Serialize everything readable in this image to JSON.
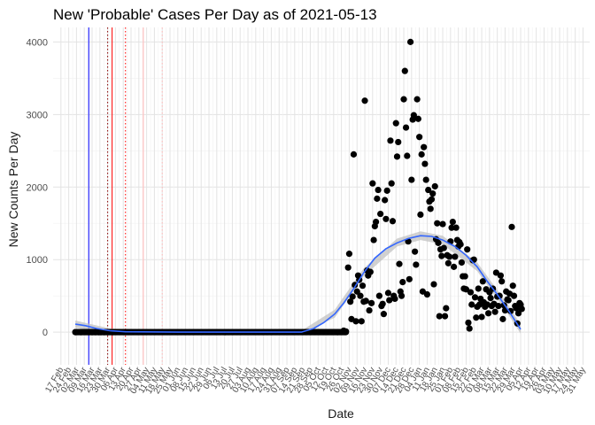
{
  "chart_data": {
    "type": "scatter",
    "title": "New 'Probable' Cases Per Day as of 2021-05-13",
    "xlabel": "Date",
    "ylabel": "New Counts Per Day",
    "ylim": [
      -450,
      4200
    ],
    "xlim": [
      "2020-02-10",
      "2021-06-06"
    ],
    "y_ticks": [
      0,
      1000,
      2000,
      3000,
      4000
    ],
    "x_ticks": [
      {
        "date": "2020-02-17",
        "label": "17 Feb"
      },
      {
        "date": "2020-02-24",
        "label": "24 Feb"
      },
      {
        "date": "2020-03-02",
        "label": "02 Mar"
      },
      {
        "date": "2020-03-09",
        "label": "09 Mar"
      },
      {
        "date": "2020-03-16",
        "label": "16 Mar"
      },
      {
        "date": "2020-03-23",
        "label": "23 Mar"
      },
      {
        "date": "2020-03-30",
        "label": "30 Mar"
      },
      {
        "date": "2020-04-06",
        "label": "06 Apr"
      },
      {
        "date": "2020-04-13",
        "label": "13 Apr"
      },
      {
        "date": "2020-04-20",
        "label": "20 Apr"
      },
      {
        "date": "2020-04-27",
        "label": "27 Apr"
      },
      {
        "date": "2020-05-04",
        "label": "04 May"
      },
      {
        "date": "2020-05-11",
        "label": "11 May"
      },
      {
        "date": "2020-05-18",
        "label": "18 May"
      },
      {
        "date": "2020-05-25",
        "label": "25 May"
      },
      {
        "date": "2020-06-01",
        "label": "01 Jun"
      },
      {
        "date": "2020-06-08",
        "label": "08 Jun"
      },
      {
        "date": "2020-06-15",
        "label": "15 Jun"
      },
      {
        "date": "2020-06-22",
        "label": "22 Jun"
      },
      {
        "date": "2020-06-29",
        "label": "29 Jun"
      },
      {
        "date": "2020-07-06",
        "label": "06 Jul"
      },
      {
        "date": "2020-07-13",
        "label": "13 Jul"
      },
      {
        "date": "2020-07-20",
        "label": "20 Jul"
      },
      {
        "date": "2020-07-27",
        "label": "27 Jul"
      },
      {
        "date": "2020-08-03",
        "label": "03 Aug"
      },
      {
        "date": "2020-08-10",
        "label": "10 Aug"
      },
      {
        "date": "2020-08-17",
        "label": "17 Aug"
      },
      {
        "date": "2020-08-24",
        "label": "24 Aug"
      },
      {
        "date": "2020-08-31",
        "label": "31 Aug"
      },
      {
        "date": "2020-09-07",
        "label": "07 Sep"
      },
      {
        "date": "2020-09-14",
        "label": "14 Sep"
      },
      {
        "date": "2020-09-21",
        "label": "21 Sep"
      },
      {
        "date": "2020-09-28",
        "label": "28 Sep"
      },
      {
        "date": "2020-10-05",
        "label": "05 Oct"
      },
      {
        "date": "2020-10-12",
        "label": "12 Oct"
      },
      {
        "date": "2020-10-19",
        "label": "19 Oct"
      },
      {
        "date": "2020-10-26",
        "label": "26 Oct"
      },
      {
        "date": "2020-11-02",
        "label": "02 Nov"
      },
      {
        "date": "2020-11-09",
        "label": "09 Nov"
      },
      {
        "date": "2020-11-16",
        "label": "16 Nov"
      },
      {
        "date": "2020-11-23",
        "label": "23 Nov"
      },
      {
        "date": "2020-11-30",
        "label": "30 Nov"
      },
      {
        "date": "2020-12-07",
        "label": "07 Dec"
      },
      {
        "date": "2020-12-14",
        "label": "14 Dec"
      },
      {
        "date": "2020-12-21",
        "label": "21 Dec"
      },
      {
        "date": "2020-12-28",
        "label": "28 Dec"
      },
      {
        "date": "2021-01-04",
        "label": "04 Jan"
      },
      {
        "date": "2021-01-11",
        "label": "11 Jan"
      },
      {
        "date": "2021-01-18",
        "label": "18 Jan"
      },
      {
        "date": "2021-01-25",
        "label": "25 Jan"
      },
      {
        "date": "2021-02-01",
        "label": "01 Feb"
      },
      {
        "date": "2021-02-08",
        "label": "08 Feb"
      },
      {
        "date": "2021-02-15",
        "label": "15 Feb"
      },
      {
        "date": "2021-02-22",
        "label": "22 Feb"
      },
      {
        "date": "2021-03-01",
        "label": "01 Mar"
      },
      {
        "date": "2021-03-08",
        "label": "08 Mar"
      },
      {
        "date": "2021-03-15",
        "label": "15 Mar"
      },
      {
        "date": "2021-03-22",
        "label": "22 Mar"
      },
      {
        "date": "2021-03-29",
        "label": "29 Mar"
      },
      {
        "date": "2021-04-05",
        "label": "05 Apr"
      },
      {
        "date": "2021-04-12",
        "label": "12 Apr"
      },
      {
        "date": "2021-04-19",
        "label": "19 Apr"
      },
      {
        "date": "2021-04-26",
        "label": "26 Apr"
      },
      {
        "date": "2021-05-03",
        "label": "03 May"
      },
      {
        "date": "2021-05-10",
        "label": "10 May"
      },
      {
        "date": "2021-05-17",
        "label": "17 May"
      },
      {
        "date": "2021-05-24",
        "label": "24 May"
      },
      {
        "date": "2021-05-31",
        "label": "31 May"
      }
    ],
    "vertical_lines": [
      {
        "date": "2020-03-13",
        "color": "#0000ff",
        "style": "solid"
      },
      {
        "date": "2020-03-30",
        "color": "#8b0000",
        "style": "dotted"
      },
      {
        "date": "2020-04-03",
        "color": "#ff0000",
        "style": "solid"
      },
      {
        "date": "2020-04-15",
        "color": "#ff0000",
        "style": "dotted"
      },
      {
        "date": "2020-05-01",
        "color": "#ffb6b6",
        "style": "solid"
      },
      {
        "date": "2020-05-18",
        "color": "#ffb6b6",
        "style": "dotted"
      }
    ],
    "points": [
      [
        "2020-03-01",
        0
      ],
      [
        "2020-03-06",
        0
      ],
      [
        "2020-03-13",
        0
      ],
      [
        "2020-03-16",
        0
      ],
      [
        "2020-03-19",
        0
      ],
      [
        "2020-03-22",
        0
      ],
      [
        "2020-03-24",
        0
      ],
      [
        "2020-03-27",
        0
      ],
      [
        "2020-03-30",
        0
      ],
      [
        "2020-10-28",
        20
      ],
      [
        "2020-10-30",
        10
      ],
      [
        "2020-11-01",
        890
      ],
      [
        "2020-11-02",
        1080
      ],
      [
        "2020-11-03",
        420
      ],
      [
        "2020-11-04",
        180
      ],
      [
        "2020-11-05",
        490
      ],
      [
        "2020-11-06",
        2450
      ],
      [
        "2020-11-07",
        650
      ],
      [
        "2020-11-08",
        150
      ],
      [
        "2020-11-09",
        560
      ],
      [
        "2020-11-10",
        780
      ],
      [
        "2020-11-11",
        720
      ],
      [
        "2020-11-12",
        500
      ],
      [
        "2020-11-13",
        150
      ],
      [
        "2020-11-14",
        640
      ],
      [
        "2020-11-15",
        420
      ],
      [
        "2020-11-16",
        3190
      ],
      [
        "2020-11-17",
        430
      ],
      [
        "2020-11-18",
        850
      ],
      [
        "2020-11-19",
        780
      ],
      [
        "2020-11-20",
        300
      ],
      [
        "2020-11-21",
        830
      ],
      [
        "2020-11-22",
        400
      ],
      [
        "2020-11-23",
        2050
      ],
      [
        "2020-11-24",
        1270
      ],
      [
        "2020-11-25",
        1460
      ],
      [
        "2020-11-26",
        1520
      ],
      [
        "2020-11-27",
        1840
      ],
      [
        "2020-11-28",
        1960
      ],
      [
        "2020-11-29",
        500
      ],
      [
        "2020-11-30",
        1630
      ],
      [
        "2020-12-01",
        360
      ],
      [
        "2020-12-02",
        390
      ],
      [
        "2020-12-03",
        250
      ],
      [
        "2020-12-04",
        1820
      ],
      [
        "2020-12-05",
        1560
      ],
      [
        "2020-12-06",
        1950
      ],
      [
        "2020-12-07",
        540
      ],
      [
        "2020-12-08",
        440
      ],
      [
        "2020-12-09",
        2640
      ],
      [
        "2020-12-10",
        2050
      ],
      [
        "2020-12-11",
        1530
      ],
      [
        "2020-12-12",
        500
      ],
      [
        "2020-12-13",
        460
      ],
      [
        "2020-12-14",
        2880
      ],
      [
        "2020-12-15",
        2420
      ],
      [
        "2020-12-16",
        2620
      ],
      [
        "2020-12-17",
        940
      ],
      [
        "2020-12-18",
        560
      ],
      [
        "2020-12-19",
        500
      ],
      [
        "2020-12-20",
        690
      ],
      [
        "2020-12-21",
        3210
      ],
      [
        "2020-12-22",
        3600
      ],
      [
        "2020-12-23",
        2820
      ],
      [
        "2020-12-24",
        2430
      ],
      [
        "2020-12-25",
        1250
      ],
      [
        "2020-12-26",
        730
      ],
      [
        "2020-12-27",
        4000
      ],
      [
        "2020-12-28",
        2100
      ],
      [
        "2020-12-29",
        2930
      ],
      [
        "2020-12-30",
        2990
      ],
      [
        "2020-12-31",
        1110
      ],
      [
        "2021-01-01",
        930
      ],
      [
        "2021-01-02",
        3210
      ],
      [
        "2021-01-03",
        2940
      ],
      [
        "2021-01-04",
        2690
      ],
      [
        "2021-01-05",
        1620
      ],
      [
        "2021-01-06",
        2450
      ],
      [
        "2021-01-07",
        560
      ],
      [
        "2021-01-08",
        2550
      ],
      [
        "2021-01-09",
        2320
      ],
      [
        "2021-01-10",
        2100
      ],
      [
        "2021-01-11",
        520
      ],
      [
        "2021-01-12",
        1960
      ],
      [
        "2021-01-13",
        1800
      ],
      [
        "2021-01-14",
        1700
      ],
      [
        "2021-01-15",
        1830
      ],
      [
        "2021-01-16",
        1910
      ],
      [
        "2021-01-17",
        660
      ],
      [
        "2021-01-18",
        2010
      ],
      [
        "2021-01-19",
        1280
      ],
      [
        "2021-01-20",
        1500
      ],
      [
        "2021-01-21",
        1230
      ],
      [
        "2021-01-22",
        220
      ],
      [
        "2021-01-23",
        1140
      ],
      [
        "2021-01-24",
        1050
      ],
      [
        "2021-01-25",
        1490
      ],
      [
        "2021-01-26",
        1160
      ],
      [
        "2021-01-27",
        220
      ],
      [
        "2021-01-28",
        330
      ],
      [
        "2021-01-29",
        1060
      ],
      [
        "2021-01-30",
        950
      ],
      [
        "2021-01-31",
        1040
      ],
      [
        "2021-02-01",
        1250
      ],
      [
        "2021-02-02",
        1440
      ],
      [
        "2021-02-03",
        1520
      ],
      [
        "2021-02-04",
        900
      ],
      [
        "2021-02-05",
        1040
      ],
      [
        "2021-02-06",
        1440
      ],
      [
        "2021-02-07",
        1270
      ],
      [
        "2021-02-08",
        1180
      ],
      [
        "2021-02-09",
        1240
      ],
      [
        "2021-02-10",
        1210
      ],
      [
        "2021-02-11",
        960
      ],
      [
        "2021-02-12",
        770
      ],
      [
        "2021-02-13",
        600
      ],
      [
        "2021-02-14",
        770
      ],
      [
        "2021-02-15",
        590
      ],
      [
        "2021-02-16",
        1140
      ],
      [
        "2021-02-17",
        130
      ],
      [
        "2021-02-18",
        50
      ],
      [
        "2021-02-19",
        550
      ],
      [
        "2021-02-20",
        380
      ],
      [
        "2021-02-21",
        990
      ],
      [
        "2021-02-22",
        1000
      ],
      [
        "2021-02-23",
        480
      ],
      [
        "2021-02-24",
        200
      ],
      [
        "2021-02-25",
        350
      ],
      [
        "2021-02-26",
        600
      ],
      [
        "2021-02-27",
        380
      ],
      [
        "2021-02-28",
        460
      ],
      [
        "2021-03-01",
        210
      ],
      [
        "2021-03-02",
        700
      ],
      [
        "2021-03-03",
        410
      ],
      [
        "2021-03-04",
        350
      ],
      [
        "2021-03-05",
        590
      ],
      [
        "2021-03-06",
        380
      ],
      [
        "2021-03-07",
        260
      ],
      [
        "2021-03-08",
        550
      ],
      [
        "2021-03-09",
        470
      ],
      [
        "2021-03-10",
        360
      ],
      [
        "2021-03-11",
        600
      ],
      [
        "2021-03-12",
        390
      ],
      [
        "2021-03-13",
        280
      ],
      [
        "2021-03-14",
        820
      ],
      [
        "2021-03-15",
        490
      ],
      [
        "2021-03-16",
        360
      ],
      [
        "2021-03-17",
        500
      ],
      [
        "2021-03-18",
        780
      ],
      [
        "2021-03-19",
        700
      ],
      [
        "2021-03-20",
        180
      ],
      [
        "2021-03-21",
        370
      ],
      [
        "2021-03-22",
        300
      ],
      [
        "2021-03-23",
        560
      ],
      [
        "2021-03-24",
        450
      ],
      [
        "2021-03-25",
        440
      ],
      [
        "2021-03-26",
        530
      ],
      [
        "2021-03-27",
        290
      ],
      [
        "2021-03-28",
        1450
      ],
      [
        "2021-03-29",
        640
      ],
      [
        "2021-03-30",
        500
      ],
      [
        "2021-03-31",
        360
      ],
      [
        "2021-04-01",
        330
      ],
      [
        "2021-04-02",
        120
      ],
      [
        "2021-04-03",
        260
      ],
      [
        "2021-04-04",
        400
      ],
      [
        "2021-04-05",
        380
      ],
      [
        "2021-04-06",
        320
      ]
    ],
    "flat_segment": {
      "from": "2020-03-01",
      "to": "2020-10-30",
      "value": 0
    },
    "smooth_line": {
      "color": "#3366ff",
      "points": [
        [
          "2020-03-01",
          110
        ],
        [
          "2020-03-10",
          90
        ],
        [
          "2020-03-20",
          50
        ],
        [
          "2020-04-01",
          20
        ],
        [
          "2020-04-15",
          5
        ],
        [
          "2020-06-01",
          0
        ],
        [
          "2020-08-01",
          0
        ],
        [
          "2020-09-20",
          0
        ],
        [
          "2020-10-01",
          50
        ],
        [
          "2020-10-10",
          130
        ],
        [
          "2020-10-20",
          250
        ],
        [
          "2020-10-28",
          400
        ],
        [
          "2020-11-06",
          600
        ],
        [
          "2020-11-15",
          820
        ],
        [
          "2020-11-25",
          1020
        ],
        [
          "2020-12-05",
          1150
        ],
        [
          "2020-12-15",
          1230
        ],
        [
          "2020-12-25",
          1290
        ],
        [
          "2021-01-05",
          1330
        ],
        [
          "2021-01-15",
          1320
        ],
        [
          "2021-01-25",
          1270
        ],
        [
          "2021-02-05",
          1180
        ],
        [
          "2021-02-15",
          1060
        ],
        [
          "2021-02-25",
          900
        ],
        [
          "2021-03-05",
          720
        ],
        [
          "2021-03-15",
          520
        ],
        [
          "2021-03-25",
          300
        ],
        [
          "2021-04-05",
          40
        ]
      ],
      "band": [
        [
          "2020-03-01",
          60,
          160
        ],
        [
          "2020-04-01",
          -10,
          50
        ],
        [
          "2020-06-01",
          -20,
          20
        ],
        [
          "2020-09-20",
          -20,
          20
        ],
        [
          "2020-10-20",
          200,
          310
        ],
        [
          "2020-11-15",
          770,
          880
        ],
        [
          "2020-12-15",
          1180,
          1290
        ],
        [
          "2021-01-05",
          1270,
          1390
        ],
        [
          "2021-01-25",
          1210,
          1330
        ],
        [
          "2021-02-25",
          840,
          960
        ],
        [
          "2021-03-25",
          240,
          370
        ],
        [
          "2021-04-05",
          -20,
          100
        ]
      ]
    }
  }
}
